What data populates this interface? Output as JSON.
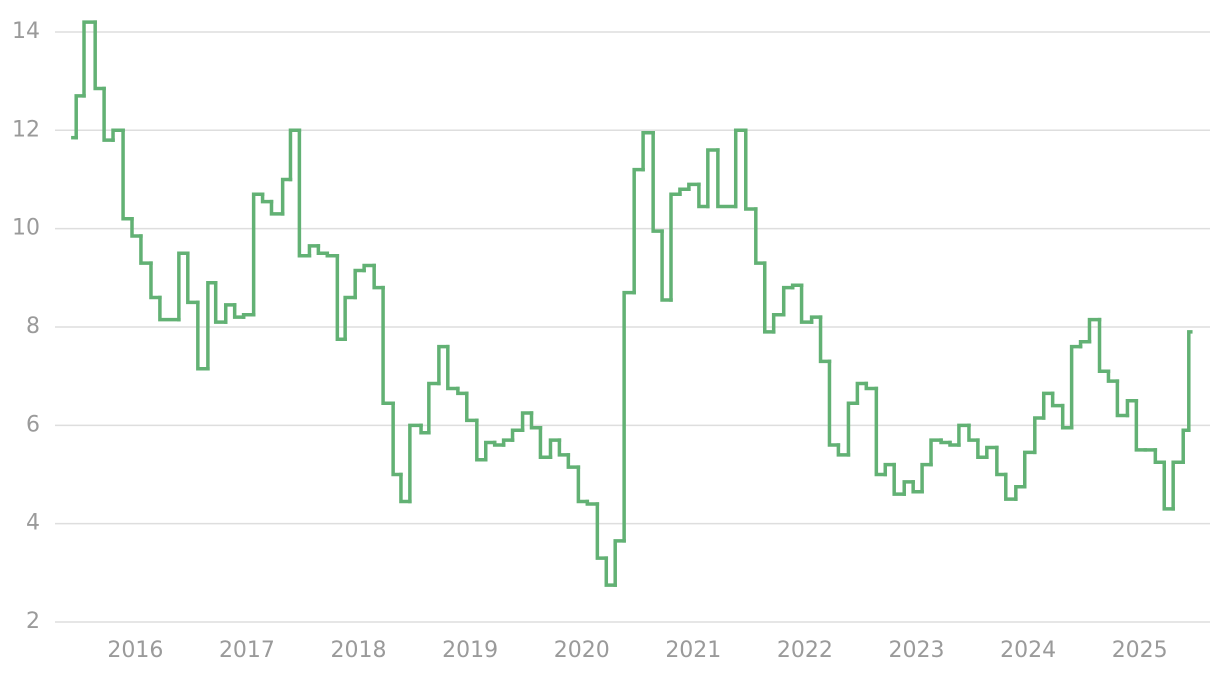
{
  "chart_data": {
    "type": "line",
    "step": true,
    "color": "#62b174",
    "grid": true,
    "xlim": [
      2015.28,
      2025.63
    ],
    "xticks": [
      2016,
      2017,
      2018,
      2019,
      2020,
      2021,
      2022,
      2023,
      2024,
      2025
    ],
    "ylim": [
      2,
      14.4
    ],
    "yticks": [
      2,
      4,
      6,
      8,
      10,
      12,
      14
    ],
    "x": [
      2015.44,
      2015.47,
      2015.54,
      2015.64,
      2015.72,
      2015.8,
      2015.89,
      2015.97,
      2016.05,
      2016.14,
      2016.22,
      2016.39,
      2016.47,
      2016.56,
      2016.65,
      2016.72,
      2016.81,
      2016.89,
      2016.97,
      2017.06,
      2017.14,
      2017.22,
      2017.32,
      2017.39,
      2017.47,
      2017.56,
      2017.64,
      2017.72,
      2017.81,
      2017.88,
      2017.97,
      2018.05,
      2018.14,
      2018.22,
      2018.31,
      2018.38,
      2018.46,
      2018.56,
      2018.63,
      2018.72,
      2018.8,
      2018.89,
      2018.97,
      2019.06,
      2019.14,
      2019.22,
      2019.3,
      2019.38,
      2019.47,
      2019.55,
      2019.63,
      2019.72,
      2019.8,
      2019.88,
      2019.97,
      2020.05,
      2020.14,
      2020.22,
      2020.3,
      2020.38,
      2020.47,
      2020.55,
      2020.64,
      2020.72,
      2020.8,
      2020.88,
      2020.96,
      2021.05,
      2021.13,
      2021.22,
      2021.38,
      2021.47,
      2021.56,
      2021.64,
      2021.72,
      2021.81,
      2021.89,
      2021.97,
      2022.06,
      2022.14,
      2022.22,
      2022.3,
      2022.39,
      2022.47,
      2022.55,
      2022.64,
      2022.72,
      2022.8,
      2022.89,
      2022.97,
      2023.05,
      2023.13,
      2023.22,
      2023.3,
      2023.38,
      2023.47,
      2023.55,
      2023.63,
      2023.72,
      2023.8,
      2023.89,
      2023.97,
      2024.06,
      2024.14,
      2024.22,
      2024.31,
      2024.39,
      2024.47,
      2024.55,
      2024.64,
      2024.72,
      2024.8,
      2024.89,
      2024.97,
      2025.05,
      2025.14,
      2025.22,
      2025.3,
      2025.39,
      2025.44
    ],
    "values": [
      11.85,
      12.7,
      14.2,
      12.85,
      11.8,
      12.0,
      10.2,
      9.85,
      9.3,
      8.6,
      8.15,
      9.5,
      8.5,
      7.15,
      8.9,
      8.1,
      8.45,
      8.2,
      8.25,
      10.7,
      10.55,
      10.3,
      11.0,
      12.0,
      9.45,
      9.65,
      9.5,
      9.45,
      7.75,
      8.6,
      9.15,
      9.25,
      8.8,
      6.45,
      5.0,
      4.45,
      6.0,
      5.85,
      6.85,
      7.6,
      6.75,
      6.65,
      6.1,
      5.3,
      5.65,
      5.6,
      5.7,
      5.9,
      6.25,
      5.95,
      5.35,
      5.7,
      5.4,
      5.15,
      4.45,
      4.4,
      3.3,
      2.75,
      3.65,
      8.7,
      11.2,
      11.95,
      9.95,
      8.55,
      10.7,
      10.8,
      10.9,
      10.45,
      11.6,
      10.45,
      12.0,
      10.4,
      9.3,
      7.9,
      8.25,
      8.8,
      8.85,
      8.1,
      8.2,
      7.3,
      5.6,
      5.4,
      6.45,
      6.85,
      6.75,
      5.0,
      5.2,
      4.6,
      4.85,
      4.65,
      5.2,
      5.7,
      5.65,
      5.6,
      6.0,
      5.7,
      5.35,
      5.55,
      5.0,
      4.5,
      4.75,
      5.45,
      6.15,
      6.65,
      6.4,
      5.95,
      7.6,
      7.7,
      8.15,
      7.1,
      6.9,
      6.2,
      6.5,
      5.5,
      5.5,
      5.25,
      4.3,
      5.25,
      5.9,
      7.9
    ]
  }
}
